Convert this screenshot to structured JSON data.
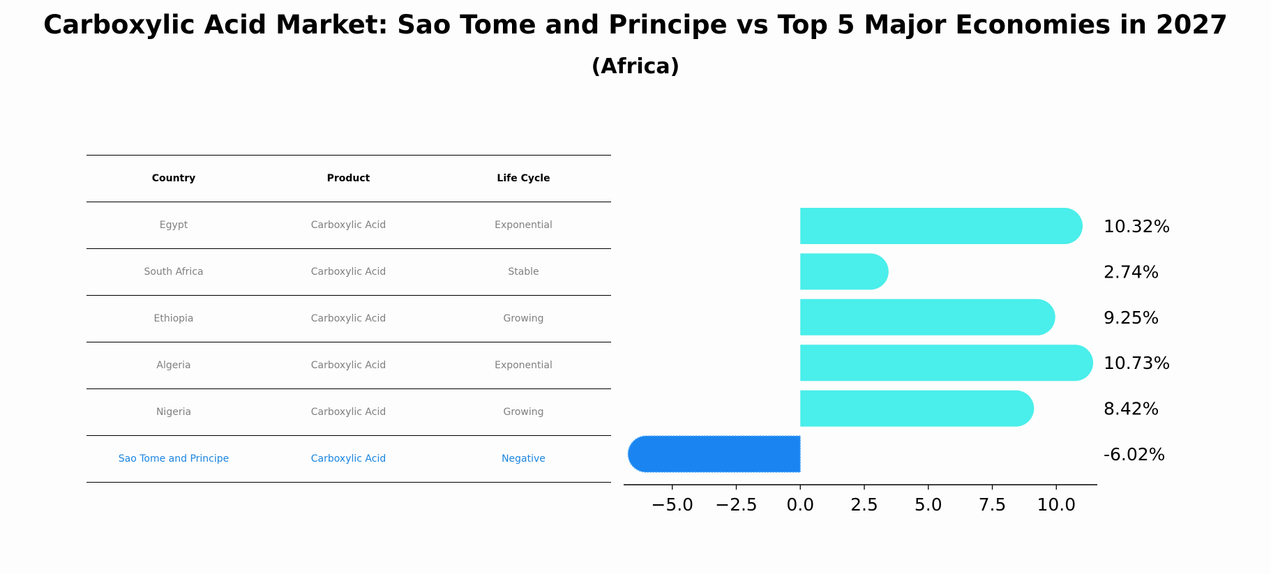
{
  "title": "Carboxylic Acid Market: Sao Tome and Principe vs Top 5 Major Economies in 2027",
  "subtitle": "(Africa)",
  "colors": {
    "positive_bar": "#4aeeea",
    "negative_bar": "#1a85f0",
    "highlight_text": "#1a85e0",
    "muted_text": "#808080"
  },
  "table": {
    "headers": [
      "Country",
      "Product",
      "Life Cycle"
    ],
    "rows": [
      {
        "country": "Egypt",
        "product": "Carboxylic Acid",
        "life_cycle": "Exponential",
        "highlight": false
      },
      {
        "country": "South Africa",
        "product": "Carboxylic Acid",
        "life_cycle": "Stable",
        "highlight": false
      },
      {
        "country": "Ethiopia",
        "product": "Carboxylic Acid",
        "life_cycle": "Growing",
        "highlight": false
      },
      {
        "country": "Algeria",
        "product": "Carboxylic Acid",
        "life_cycle": "Exponential",
        "highlight": false
      },
      {
        "country": "Nigeria",
        "product": "Carboxylic Acid",
        "life_cycle": "Growing",
        "highlight": false
      },
      {
        "country": "Sao Tome and Principe",
        "product": "Carboxylic Acid",
        "life_cycle": "Negative",
        "highlight": true
      }
    ]
  },
  "chart_data": {
    "type": "bar",
    "orientation": "horizontal",
    "categories": [
      "Egypt",
      "South Africa",
      "Ethiopia",
      "Algeria",
      "Nigeria",
      "Sao Tome and Principe"
    ],
    "values": [
      10.32,
      2.74,
      9.25,
      10.73,
      8.42,
      -6.02
    ],
    "value_labels": [
      "10.32%",
      "2.74%",
      "9.25%",
      "10.73%",
      "8.42%",
      "-6.02%"
    ],
    "xlim": [
      -6.9,
      11.6
    ],
    "xticks": [
      -5.0,
      -2.5,
      0.0,
      2.5,
      5.0,
      7.5,
      10.0
    ],
    "xtick_labels": [
      "−5.0",
      "−2.5",
      "0.0",
      "2.5",
      "5.0",
      "7.5",
      "10.0"
    ],
    "grid": false
  }
}
